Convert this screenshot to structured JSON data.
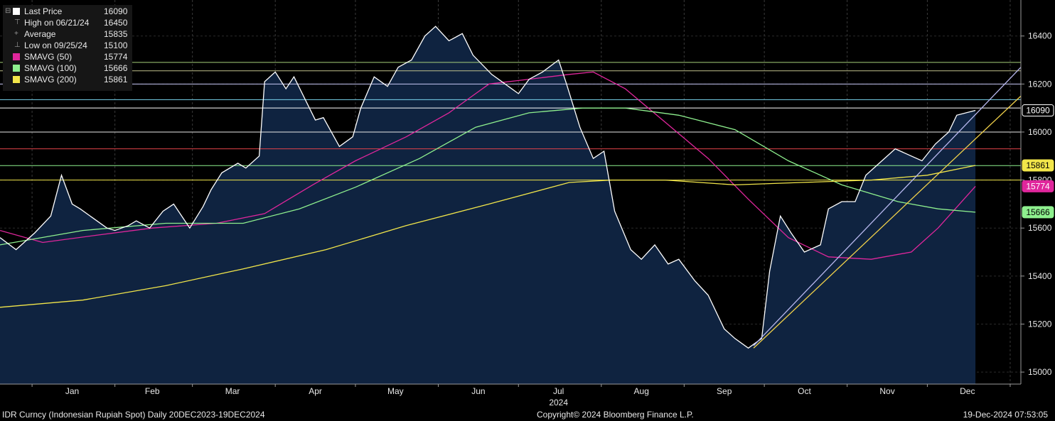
{
  "chart_data": {
    "type": "line",
    "ylim": [
      14950,
      16550
    ],
    "y_ticks": [
      15000,
      15200,
      15400,
      15600,
      15800,
      16000,
      16200,
      16400
    ],
    "x_tick_labels": [
      "Jan",
      "Feb",
      "Mar",
      "Apr",
      "May",
      "Jun",
      "Jul",
      "Aug",
      "Sep",
      "Oct",
      "Nov",
      "Dec"
    ],
    "x_year_label": "2024",
    "area_fill": true,
    "series": [
      {
        "name": "Last Price",
        "color": "#ffffff",
        "x": [
          "2023-12-20",
          "2023-12-26",
          "2024-01-02",
          "2024-01-08",
          "2024-01-12",
          "2024-01-16",
          "2024-01-19",
          "2024-01-24",
          "2024-01-29",
          "2024-02-01",
          "2024-02-06",
          "2024-02-09",
          "2024-02-14",
          "2024-02-19",
          "2024-02-23",
          "2024-02-29",
          "2024-03-05",
          "2024-03-08",
          "2024-03-12",
          "2024-03-18",
          "2024-03-21",
          "2024-03-26",
          "2024-03-28",
          "2024-04-01",
          "2024-04-05",
          "2024-04-08",
          "2024-04-16",
          "2024-04-19",
          "2024-04-25",
          "2024-04-30",
          "2024-05-03",
          "2024-05-08",
          "2024-05-13",
          "2024-05-17",
          "2024-05-22",
          "2024-05-27",
          "2024-05-31",
          "2024-06-05",
          "2024-06-10",
          "2024-06-14",
          "2024-06-21",
          "2024-06-26",
          "2024-07-01",
          "2024-07-05",
          "2024-07-10",
          "2024-07-16",
          "2024-07-19",
          "2024-07-24",
          "2024-07-29",
          "2024-08-02",
          "2024-08-06",
          "2024-08-12",
          "2024-08-16",
          "2024-08-21",
          "2024-08-26",
          "2024-08-30",
          "2024-09-05",
          "2024-09-10",
          "2024-09-16",
          "2024-09-20",
          "2024-09-25",
          "2024-09-30",
          "2024-10-03",
          "2024-10-07",
          "2024-10-11",
          "2024-10-16",
          "2024-10-22",
          "2024-10-25",
          "2024-10-30",
          "2024-11-04",
          "2024-11-08",
          "2024-11-13",
          "2024-11-19",
          "2024-11-25",
          "2024-11-29",
          "2024-12-04",
          "2024-12-09",
          "2024-12-12",
          "2024-12-19"
        ],
        "values": [
          15560,
          15510,
          15580,
          15650,
          15820,
          15700,
          15680,
          15640,
          15600,
          15590,
          15610,
          15630,
          15600,
          15670,
          15700,
          15600,
          15690,
          15760,
          15830,
          15870,
          15850,
          15900,
          16210,
          16250,
          16180,
          16230,
          16050,
          16060,
          15940,
          15980,
          16100,
          16230,
          16190,
          16270,
          16300,
          16400,
          16440,
          16380,
          16410,
          16320,
          16240,
          16200,
          16160,
          16220,
          16250,
          16300,
          16200,
          16020,
          15890,
          15920,
          15670,
          15510,
          15470,
          15530,
          15450,
          15470,
          15380,
          15320,
          15180,
          15140,
          15100,
          15140,
          15420,
          15650,
          15580,
          15500,
          15530,
          15680,
          15710,
          15710,
          15820,
          15870,
          15930,
          15900,
          15880,
          15950,
          16000,
          16070,
          16090
        ]
      },
      {
        "name": "SMAVG (50)",
        "color": "#e0269c",
        "x": [
          "2023-12-20",
          "2024-01-05",
          "2024-01-25",
          "2024-02-15",
          "2024-03-10",
          "2024-03-28",
          "2024-04-15",
          "2024-05-01",
          "2024-05-20",
          "2024-06-05",
          "2024-06-20",
          "2024-07-05",
          "2024-07-20",
          "2024-07-29",
          "2024-08-10",
          "2024-08-25",
          "2024-09-10",
          "2024-09-25",
          "2024-10-10",
          "2024-10-25",
          "2024-11-10",
          "2024-11-25",
          "2024-12-05",
          "2024-12-19"
        ],
        "values": [
          15590,
          15540,
          15570,
          15600,
          15620,
          15660,
          15780,
          15880,
          15980,
          16080,
          16200,
          16220,
          16240,
          16250,
          16180,
          16040,
          15890,
          15720,
          15560,
          15480,
          15470,
          15500,
          15600,
          15774
        ]
      },
      {
        "name": "SMAVG (100)",
        "color": "#8ef08e",
        "x": [
          "2023-12-20",
          "2024-01-20",
          "2024-02-20",
          "2024-03-20",
          "2024-04-10",
          "2024-05-01",
          "2024-05-25",
          "2024-06-15",
          "2024-07-05",
          "2024-07-25",
          "2024-08-10",
          "2024-08-30",
          "2024-09-20",
          "2024-10-10",
          "2024-10-30",
          "2024-11-20",
          "2024-12-05",
          "2024-12-19"
        ],
        "values": [
          15530,
          15590,
          15620,
          15620,
          15680,
          15770,
          15890,
          16020,
          16080,
          16100,
          16100,
          16070,
          16010,
          15880,
          15780,
          15710,
          15680,
          15666
        ]
      },
      {
        "name": "SMAVG (200)",
        "color": "#f2e64a",
        "x": [
          "2023-12-20",
          "2024-01-20",
          "2024-02-20",
          "2024-03-20",
          "2024-04-20",
          "2024-05-20",
          "2024-06-20",
          "2024-07-20",
          "2024-08-05",
          "2024-08-25",
          "2024-09-20",
          "2024-10-15",
          "2024-11-10",
          "2024-12-01",
          "2024-12-19"
        ],
        "values": [
          15270,
          15300,
          15360,
          15430,
          15510,
          15610,
          15700,
          15790,
          15800,
          15800,
          15780,
          15790,
          15800,
          15820,
          15861
        ]
      }
    ],
    "trendlines": [
      {
        "color": "#b9b9f0",
        "x": [
          "2024-09-27",
          "2025-01-05"
        ],
        "values": [
          15110,
          16270
        ]
      },
      {
        "color": "#f2d24a",
        "x": [
          "2024-09-27",
          "2025-01-05"
        ],
        "values": [
          15100,
          16150
        ]
      }
    ],
    "h_lines": [
      {
        "value": 16290,
        "color": "#a6d07a"
      },
      {
        "value": 16255,
        "color": "#bfbf8c"
      },
      {
        "value": 16200,
        "color": "#c8c8f5"
      },
      {
        "value": 16135,
        "color": "#7ad6ef"
      },
      {
        "value": 16100,
        "color": "#ffffff"
      },
      {
        "value": 16000,
        "color": "#e8e8e8"
      },
      {
        "value": 15930,
        "color": "#e0424a"
      },
      {
        "value": 15860,
        "color": "#8ef08e"
      },
      {
        "value": 15800,
        "color": "#f2e64a"
      }
    ],
    "right_labels": [
      {
        "text": "16090",
        "value": 16090,
        "bg": "#000000",
        "fg": "#ffffff",
        "border": "#ffffff"
      },
      {
        "text": "15861",
        "value": 15861,
        "bg": "#f2e64a",
        "fg": "#000000",
        "border": "#f2e64a"
      },
      {
        "text": "15774",
        "value": 15774,
        "bg": "#e0269c",
        "fg": "#ffffff",
        "border": "#e0269c"
      },
      {
        "text": "15666",
        "value": 15666,
        "bg": "#8ef08e",
        "fg": "#000000",
        "border": "#8ef08e"
      }
    ]
  },
  "legend": {
    "rows": [
      {
        "label": "Last Price",
        "value": "16090",
        "kind": "swatch",
        "color": "#ffffff"
      },
      {
        "label": "High on 06/21/24",
        "value": "16450",
        "kind": "tick",
        "glyph": "⊤"
      },
      {
        "label": "Average",
        "value": "15835",
        "kind": "tick",
        "glyph": "+"
      },
      {
        "label": "Low on 09/25/24",
        "value": "15100",
        "kind": "tick",
        "glyph": "⊥"
      },
      {
        "label": "SMAVG (50)",
        "value": "15774",
        "kind": "swatch",
        "color": "#e0269c"
      },
      {
        "label": "SMAVG (100)",
        "value": "15666",
        "kind": "swatch",
        "color": "#8ef08e"
      },
      {
        "label": "SMAVG (200)",
        "value": "15861",
        "kind": "swatch",
        "color": "#f2e64a"
      }
    ]
  },
  "footer": {
    "left": "IDR Curncy (Indonesian Rupiah Spot)  Daily 20DEC2023-19DEC2024",
    "center": "Copyright© 2024 Bloomberg Finance L.P.",
    "right": "19-Dec-2024 07:53:05"
  }
}
